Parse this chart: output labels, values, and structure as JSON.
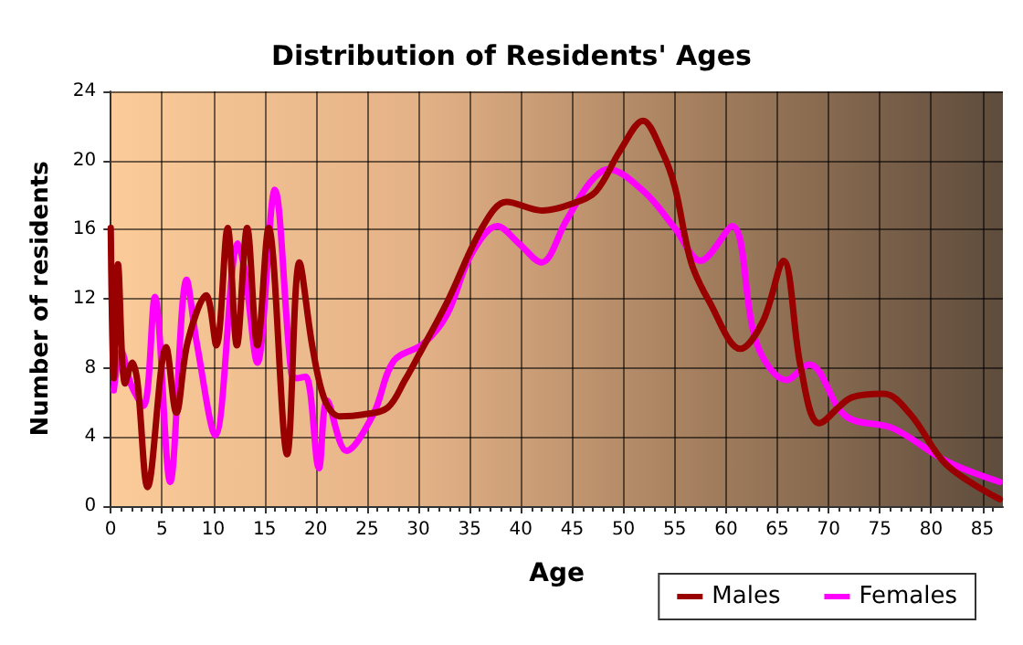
{
  "chart_data": {
    "type": "line",
    "title": "Distribution of Residents' Ages",
    "xlabel": "Age",
    "ylabel": "Number of residents",
    "xlim": [
      0,
      87
    ],
    "xticks": [
      0,
      5,
      10,
      15,
      20,
      25,
      30,
      35,
      40,
      45,
      50,
      55,
      60,
      65,
      70,
      75,
      80,
      85
    ],
    "ylim": [
      0,
      24
    ],
    "yticks": [
      0,
      4,
      8,
      12,
      16,
      20,
      24
    ],
    "grid": true,
    "legend": "bottom right",
    "marker": "none",
    "line_style": "solid",
    "series": [
      {
        "name": "Males",
        "color": "#990000",
        "x": [
          0,
          0.3,
          0.7,
          1.4,
          2.1,
          2.6,
          3.6,
          5.4,
          6.4,
          7.5,
          9.3,
          10.3,
          11.4,
          12.3,
          13.3,
          14.3,
          15.4,
          17.2,
          18.4,
          19.7,
          20.9,
          22.3,
          24.6,
          27,
          28.7,
          30,
          32.8,
          36.3,
          38.6,
          42.1,
          45,
          47.3,
          49.7,
          51.9,
          53.7,
          55,
          56.6,
          58.4,
          61.4,
          63.6,
          65.6,
          67.3,
          69.1,
          72.3,
          75.4,
          78,
          81.5,
          86.7
        ],
        "values": [
          16.1,
          7.4,
          14,
          7.1,
          8.3,
          7.2,
          1.1,
          9.2,
          5.4,
          9.5,
          12.2,
          9.3,
          16.1,
          9.3,
          16.1,
          9.3,
          16.1,
          3,
          14.1,
          9.1,
          6.1,
          5.2,
          5.3,
          5.7,
          7.3,
          8.7,
          11.8,
          16.2,
          17.6,
          17.1,
          17.5,
          18.2,
          20.6,
          22.3,
          20.6,
          18.5,
          14.1,
          11.8,
          9.1,
          10.7,
          14.2,
          8,
          4.8,
          6.3,
          6.5,
          5.3,
          2.4,
          0.4
        ]
      },
      {
        "name": "Females",
        "color": "#ff00ff",
        "x": [
          0.3,
          1,
          2,
          3.2,
          4.3,
          5.8,
          7.4,
          8.4,
          10.2,
          12.4,
          13.1,
          14.3,
          16,
          17.6,
          18.1,
          19,
          20.3,
          21.1,
          23,
          25.6,
          27.6,
          30.5,
          32.8,
          35.1,
          37.7,
          39.8,
          42,
          44.4,
          46.7,
          48.5,
          52,
          55,
          57.5,
          60.6,
          63,
          65.9,
          68.1,
          71.7,
          76.3,
          81.5,
          86.7
        ],
        "values": [
          6.7,
          9,
          7,
          5.8,
          12.1,
          1.4,
          13.1,
          9.4,
          4.1,
          15.2,
          13.5,
          8.3,
          18.3,
          7.7,
          7.4,
          7.5,
          2.2,
          6.1,
          3.2,
          5.3,
          8.4,
          9.4,
          11.1,
          14.5,
          16.2,
          15.2,
          14.1,
          16.5,
          18.7,
          19.5,
          18.2,
          16.1,
          14.2,
          16.2,
          9.4,
          7.3,
          8.2,
          5.2,
          4.5,
          2.6,
          1.4
        ]
      }
    ]
  }
}
